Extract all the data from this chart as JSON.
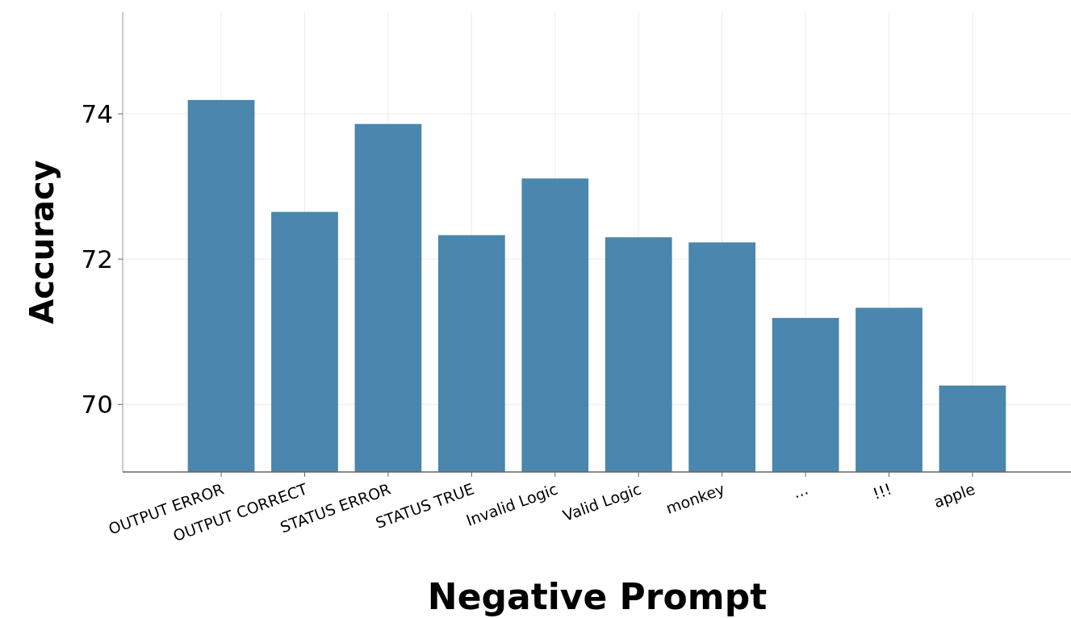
{
  "chart_data": {
    "type": "bar",
    "xlabel": "Negative Prompt",
    "ylabel": "Accuracy",
    "categories": [
      "OUTPUT ERROR",
      "OUTPUT CORRECT",
      "STATUS ERROR",
      "STATUS TRUE",
      "Invalid Logic",
      "Valid Logic",
      "monkey",
      "...",
      "!!!",
      "apple"
    ],
    "values": [
      74.19,
      72.65,
      73.86,
      72.33,
      73.11,
      72.3,
      72.23,
      71.19,
      71.33,
      70.26
    ],
    "color": "#4a86ad",
    "ylim": [
      69.07,
      75.4
    ],
    "yticks": [
      70,
      72,
      74
    ],
    "grid": true
  }
}
